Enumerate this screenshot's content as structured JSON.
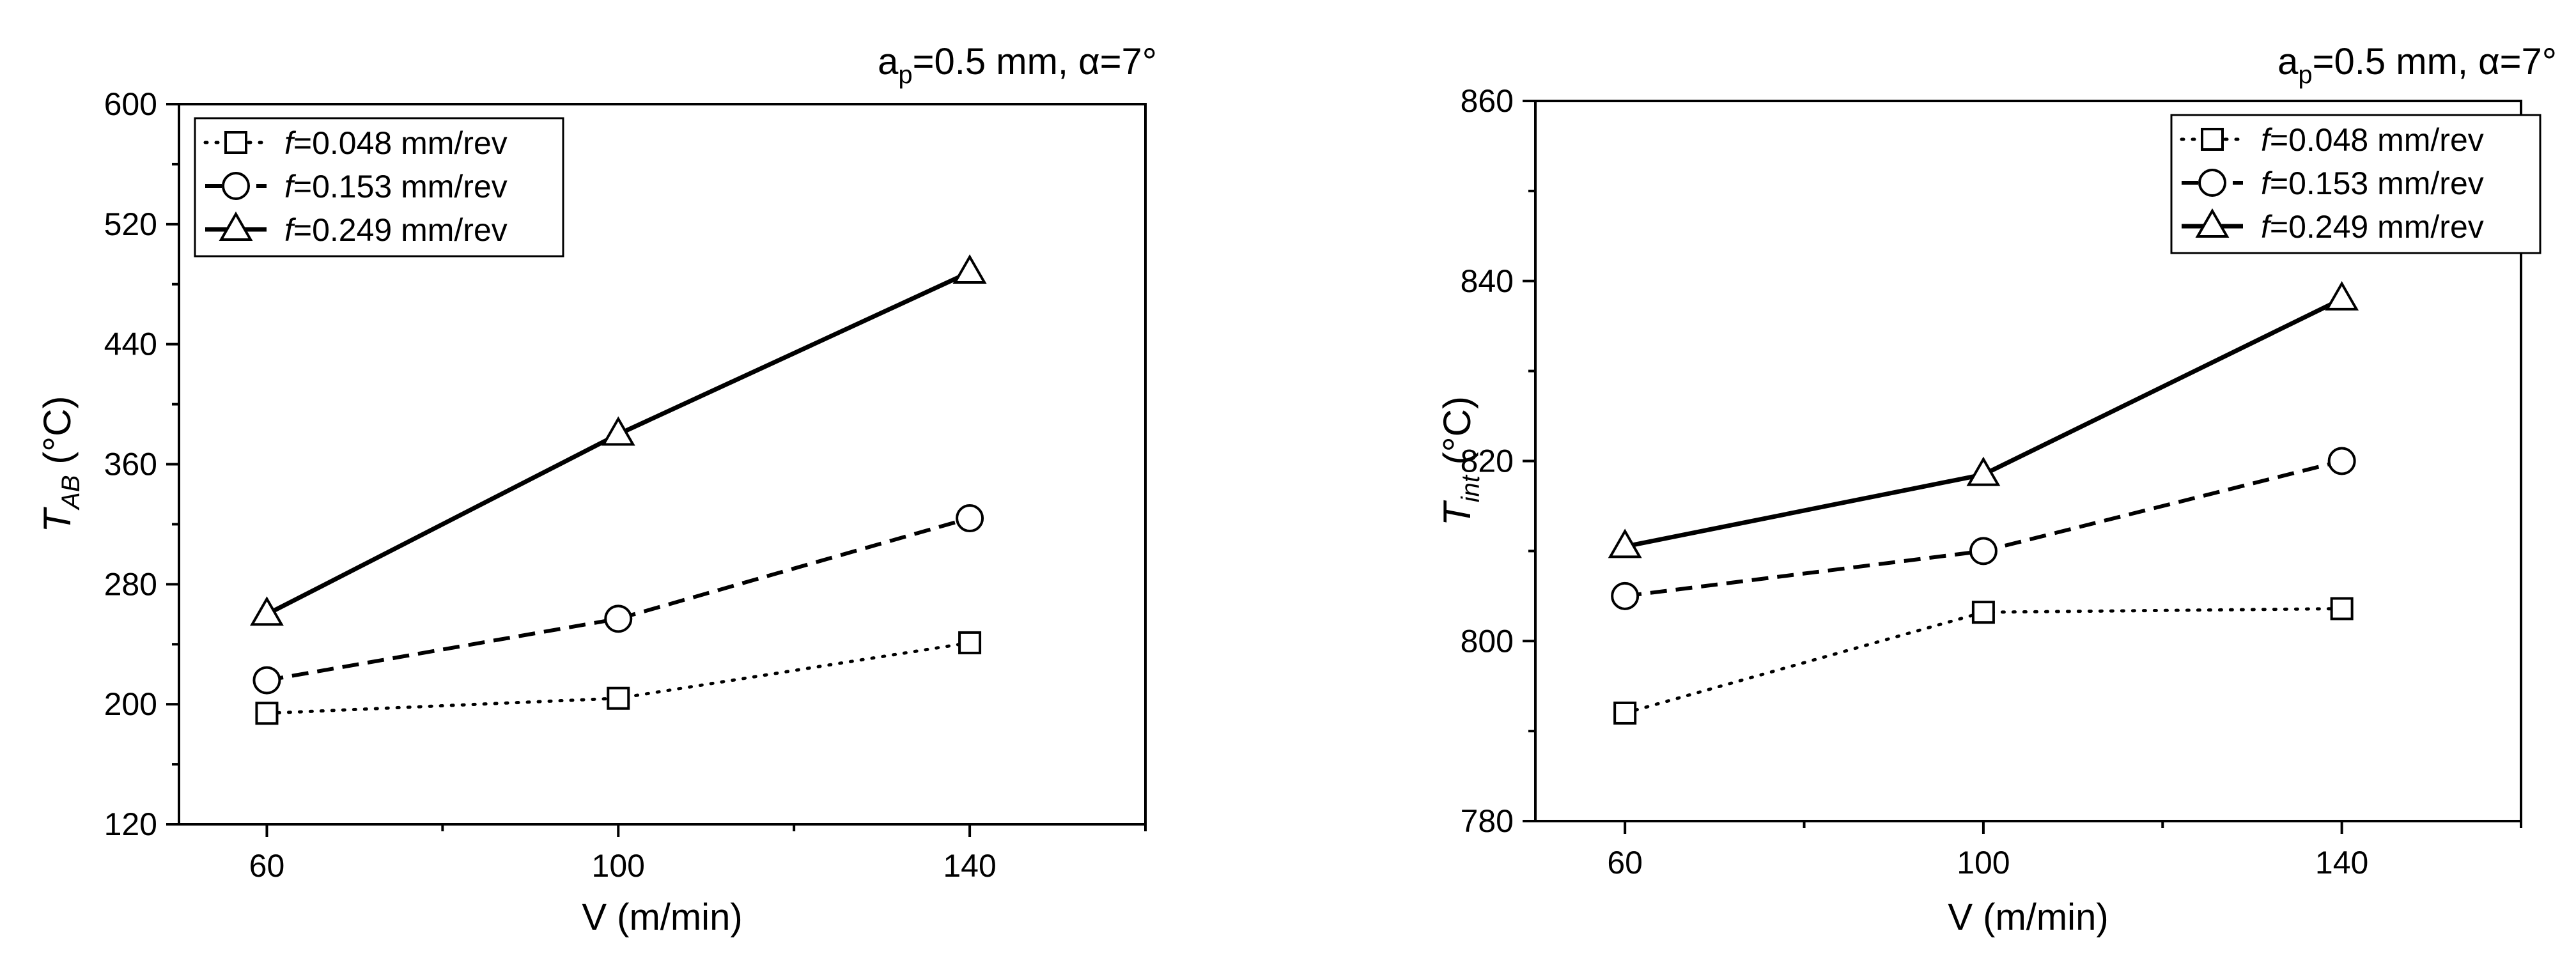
{
  "chart_data": [
    {
      "type": "line",
      "annotation": {
        "a": "a",
        "sub": "p",
        "rest": "=0.5 mm, ",
        "alpha": "α",
        "alpha_rest": "=7°"
      },
      "ylabel": {
        "main": "T",
        "sub": "AB",
        "unit": " (°C)"
      },
      "xlabel": "V (m/min)",
      "x_ticks": [
        "60",
        "100",
        "140"
      ],
      "y_ticks": [
        "120",
        "200",
        "280",
        "360",
        "440",
        "520",
        "600"
      ],
      "xlim": [
        50,
        160
      ],
      "ylim": [
        120,
        600
      ],
      "legend_position": "top-left",
      "series": [
        {
          "name": "f=0.048 mm/rev",
          "name_f": "f",
          "name_rest": "=0.048 mm/rev",
          "marker": "square",
          "dash": "dotted",
          "x": [
            60,
            100,
            140
          ],
          "y": [
            194,
            204,
            241
          ]
        },
        {
          "name": "f=0.153 mm/rev",
          "name_f": "f",
          "name_rest": "=0.153 mm/rev",
          "marker": "circle",
          "dash": "dashed",
          "x": [
            60,
            100,
            140
          ],
          "y": [
            216,
            257,
            324
          ]
        },
        {
          "name": "f=0.249 mm/rev",
          "name_f": "f",
          "name_rest": "=0.249 mm/rev",
          "marker": "triangle",
          "dash": "solid",
          "x": [
            60,
            100,
            140
          ],
          "y": [
            260,
            380,
            488
          ]
        }
      ]
    },
    {
      "type": "line",
      "annotation": {
        "a": "a",
        "sub": "p",
        "rest": "=0.5 mm, ",
        "alpha": "α",
        "alpha_rest": "=7°"
      },
      "ylabel": {
        "main": "T",
        "sub": "int",
        "unit": " (°C)"
      },
      "xlabel": "V (m/min)",
      "x_ticks": [
        "60",
        "100",
        "140"
      ],
      "y_ticks": [
        "780",
        "800",
        "820",
        "840",
        "860"
      ],
      "xlim": [
        50,
        160
      ],
      "ylim": [
        780,
        860
      ],
      "legend_position": "top-right",
      "series": [
        {
          "name": "f=0.048 mm/rev",
          "name_f": "f",
          "name_rest": "=0.048 mm/rev",
          "marker": "square",
          "dash": "dotted",
          "x": [
            60,
            100,
            140
          ],
          "y": [
            792,
            803.2,
            803.6
          ]
        },
        {
          "name": "f=0.153 mm/rev",
          "name_f": "f",
          "name_rest": "=0.153 mm/rev",
          "marker": "circle",
          "dash": "dashed",
          "x": [
            60,
            100,
            140
          ],
          "y": [
            805,
            810,
            820
          ]
        },
        {
          "name": "f=0.249 mm/rev",
          "name_f": "f",
          "name_rest": "=0.249 mm/rev",
          "marker": "triangle",
          "dash": "solid",
          "x": [
            60,
            100,
            140
          ],
          "y": [
            810.5,
            818.5,
            838
          ]
        }
      ]
    }
  ]
}
